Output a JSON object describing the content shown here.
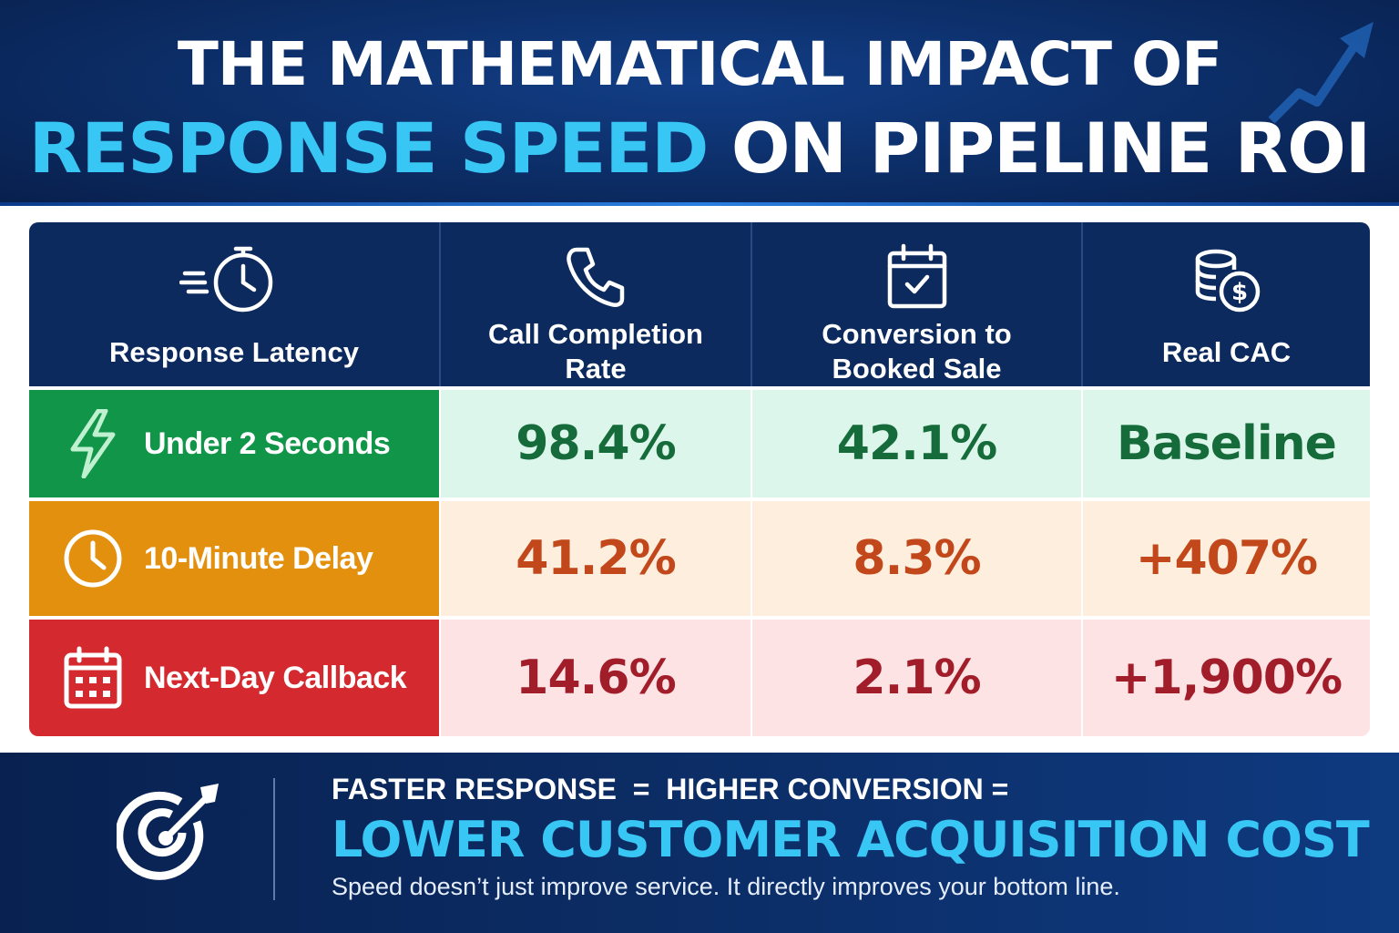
{
  "header": {
    "title_line1": "THE MATHEMATICAL IMPACT OF",
    "title_accent": "RESPONSE SPEED",
    "title_rest": " ON PIPELINE ROI"
  },
  "colors": {
    "navy": "#0c2a5e",
    "accent_cyan": "#38c6f4",
    "green": "#119548",
    "orange": "#e4900f",
    "red": "#d42a2f"
  },
  "chart_data": {
    "type": "table",
    "columns": [
      {
        "label_lines": [
          "Response Latency"
        ],
        "icon": "stopwatch-icon"
      },
      {
        "label_lines": [
          "Call Completion",
          "Rate"
        ],
        "icon": "phone-icon"
      },
      {
        "label_lines": [
          "Conversion to",
          "Booked Sale"
        ],
        "icon": "calendar-check-icon"
      },
      {
        "label_lines": [
          "Real CAC"
        ],
        "icon": "coins-dollar-icon"
      }
    ],
    "rows": [
      {
        "label": "Under 2 Seconds",
        "icon": "lightning-icon",
        "call_completion_rate": 98.4,
        "conversion_to_booked_sale": 42.1,
        "real_cac": "Baseline",
        "display": [
          "98.4%",
          "42.1%",
          "Baseline"
        ],
        "label_color": "#119548",
        "cell_bg": "#ddf6ec",
        "value_color": "#156b39"
      },
      {
        "label": "10-Minute Delay",
        "icon": "clock-icon",
        "call_completion_rate": 41.2,
        "conversion_to_booked_sale": 8.3,
        "real_cac": 407,
        "display": [
          "41.2%",
          "8.3%",
          "+407%"
        ],
        "label_color": "#e4900f",
        "cell_bg": "#fdeedd",
        "value_color": "#c2481b"
      },
      {
        "label": "Next-Day Callback",
        "icon": "calendar-icon",
        "call_completion_rate": 14.6,
        "conversion_to_booked_sale": 2.1,
        "real_cac": 1900,
        "display": [
          "14.6%",
          "2.1%",
          "+1,900%"
        ],
        "label_color": "#d42a2f",
        "cell_bg": "#fde3e4",
        "value_color": "#a11d2a"
      }
    ]
  },
  "footer": {
    "line1": "FASTER RESPONSE  =  HIGHER CONVERSION =",
    "line2": "LOWER CUSTOMER ACQUISITION COST",
    "line3": "Speed doesn’t just improve service. It directly improves your bottom line.",
    "icon": "target-arrow-icon"
  }
}
